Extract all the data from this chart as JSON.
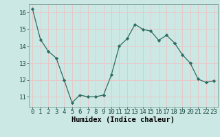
{
  "x": [
    0,
    1,
    2,
    3,
    4,
    5,
    6,
    7,
    8,
    9,
    10,
    11,
    12,
    13,
    14,
    15,
    16,
    17,
    18,
    19,
    20,
    21,
    22,
    23
  ],
  "y": [
    16.2,
    14.4,
    13.7,
    13.3,
    12.0,
    10.65,
    11.1,
    11.0,
    11.0,
    11.1,
    12.3,
    14.0,
    14.45,
    15.3,
    15.0,
    14.9,
    14.35,
    14.65,
    14.2,
    13.5,
    13.0,
    12.05,
    11.85,
    11.95
  ],
  "xlabel": "Humidex (Indice chaleur)",
  "bg_color": "#cce8e4",
  "grid_color": "#e8c8c8",
  "line_color": "#2d6b60",
  "marker_color": "#2d6b60",
  "ylim": [
    10.4,
    16.5
  ],
  "xlim": [
    -0.5,
    23.5
  ],
  "yticks": [
    11,
    12,
    13,
    14,
    15,
    16
  ],
  "xticks": [
    0,
    1,
    2,
    3,
    4,
    5,
    6,
    7,
    8,
    9,
    10,
    11,
    12,
    13,
    14,
    15,
    16,
    17,
    18,
    19,
    20,
    21,
    22,
    23
  ],
  "tick_fontsize": 6.5,
  "xlabel_fontsize": 7.5
}
